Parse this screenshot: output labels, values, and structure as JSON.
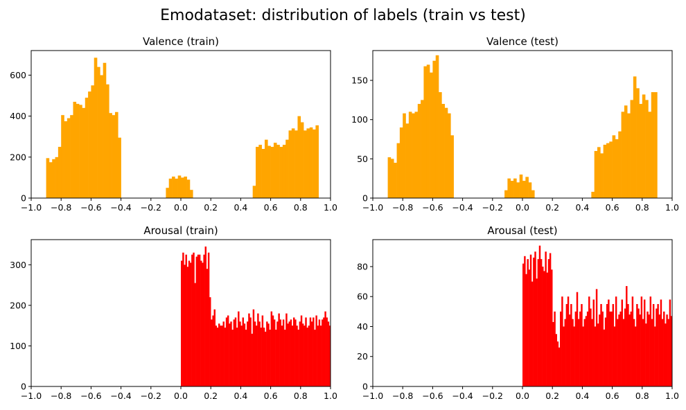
{
  "figure": {
    "title": "Emodataset: distribution of labels (train vs test)"
  },
  "chart_data": [
    {
      "type": "bar",
      "title": "Valence (train)",
      "color": "#ffa500",
      "xlim": [
        -1.0,
        1.0
      ],
      "ylim": [
        0,
        720
      ],
      "xticks": [
        "−1.0",
        "−0.8",
        "−0.6",
        "−0.4",
        "−0.2",
        "0.0",
        "0.2",
        "0.4",
        "0.6",
        "0.8",
        "1.0"
      ],
      "yticks": [
        "0",
        "200",
        "400",
        "600"
      ],
      "x_range": [
        -0.9,
        0.9
      ],
      "bin_width": 0.02,
      "values": [
        195,
        175,
        190,
        200,
        250,
        405,
        375,
        390,
        405,
        470,
        460,
        455,
        440,
        490,
        520,
        550,
        685,
        640,
        600,
        660,
        555,
        415,
        405,
        420,
        295,
        0,
        0,
        0,
        0,
        0,
        0,
        0,
        0,
        0,
        0,
        0,
        0,
        0,
        0,
        0,
        50,
        95,
        105,
        95,
        110,
        100,
        105,
        90,
        40,
        0,
        0,
        0,
        0,
        0,
        0,
        0,
        0,
        0,
        0,
        0,
        0,
        0,
        0,
        0,
        0,
        0,
        0,
        0,
        0,
        60,
        250,
        260,
        240,
        285,
        255,
        250,
        270,
        260,
        250,
        260,
        285,
        330,
        340,
        330,
        400,
        370,
        330,
        340,
        345,
        335,
        355
      ]
    },
    {
      "type": "bar",
      "title": "Valence (test)",
      "color": "#ffa500",
      "xlim": [
        -1.0,
        1.0
      ],
      "ylim": [
        0,
        188
      ],
      "xticks": [
        "−1.0",
        "−0.8",
        "−0.6",
        "−0.4",
        "−0.2",
        "0.0",
        "0.2",
        "0.4",
        "0.6",
        "0.8",
        "1.0"
      ],
      "yticks": [
        "0",
        "50",
        "100",
        "150"
      ],
      "x_range": [
        -0.9,
        0.9
      ],
      "bin_width": 0.02,
      "values": [
        52,
        50,
        45,
        70,
        90,
        108,
        95,
        110,
        108,
        110,
        120,
        125,
        168,
        170,
        160,
        175,
        182,
        135,
        120,
        115,
        108,
        80,
        0,
        0,
        0,
        0,
        0,
        0,
        0,
        0,
        0,
        0,
        0,
        0,
        0,
        0,
        0,
        0,
        0,
        10,
        25,
        22,
        25,
        20,
        30,
        22,
        27,
        20,
        10,
        0,
        0,
        0,
        0,
        0,
        0,
        0,
        0,
        0,
        0,
        0,
        0,
        0,
        0,
        0,
        0,
        0,
        0,
        0,
        8,
        60,
        65,
        57,
        68,
        70,
        72,
        80,
        75,
        85,
        110,
        118,
        108,
        125,
        155,
        140,
        120,
        132,
        125,
        110,
        135,
        135
      ]
    },
    {
      "type": "bar",
      "title": "Arousal (train)",
      "color": "#ff0000",
      "xlim": [
        -1.0,
        1.0
      ],
      "ylim": [
        0,
        362
      ],
      "xticks": [
        "−1.0",
        "−0.8",
        "−0.6",
        "−0.4",
        "−0.2",
        "0.0",
        "0.2",
        "0.4",
        "0.6",
        "0.8",
        "1.0"
      ],
      "yticks": [
        "0",
        "100",
        "200",
        "300"
      ],
      "x_range": [
        0.0,
        1.0
      ],
      "bin_width": 0.01,
      "values": [
        310,
        330,
        300,
        325,
        295,
        310,
        305,
        325,
        330,
        255,
        320,
        325,
        325,
        310,
        305,
        325,
        345,
        290,
        330,
        220,
        165,
        175,
        190,
        150,
        145,
        155,
        150,
        150,
        160,
        145,
        170,
        175,
        155,
        160,
        140,
        165,
        170,
        145,
        185,
        160,
        150,
        170,
        155,
        140,
        160,
        180,
        170,
        130,
        190,
        160,
        150,
        180,
        160,
        145,
        175,
        145,
        135,
        160,
        155,
        140,
        185,
        175,
        165,
        140,
        160,
        180,
        165,
        150,
        165,
        140,
        180,
        155,
        160,
        165,
        150,
        170,
        165,
        150,
        140,
        160,
        175,
        155,
        150,
        170,
        145,
        150,
        170,
        160,
        170,
        140,
        175,
        150,
        165,
        150,
        165,
        170,
        185,
        170,
        160,
        150
      ]
    },
    {
      "type": "bar",
      "title": "Arousal (test)",
      "color": "#ff0000",
      "xlim": [
        -1.0,
        1.0
      ],
      "ylim": [
        0,
        98
      ],
      "xticks": [
        "−1.0",
        "−0.8",
        "−0.6",
        "−0.4",
        "−0.2",
        "0.0",
        "0.2",
        "0.4",
        "0.6",
        "0.8",
        "1.0"
      ],
      "yticks": [
        "0",
        "20",
        "40",
        "60",
        "80"
      ],
      "x_range": [
        0.0,
        1.0
      ],
      "bin_width": 0.01,
      "values": [
        82,
        87,
        75,
        85,
        78,
        88,
        70,
        86,
        90,
        72,
        85,
        94,
        85,
        80,
        77,
        90,
        76,
        85,
        89,
        78,
        43,
        50,
        35,
        30,
        26,
        50,
        60,
        40,
        45,
        55,
        60,
        48,
        55,
        45,
        40,
        50,
        63,
        45,
        50,
        55,
        40,
        45,
        47,
        50,
        60,
        52,
        45,
        58,
        40,
        65,
        42,
        48,
        55,
        50,
        38,
        46,
        55,
        58,
        50,
        50,
        55,
        40,
        60,
        45,
        48,
        50,
        58,
        45,
        52,
        67,
        55,
        48,
        50,
        60,
        45,
        40,
        55,
        52,
        48,
        60,
        45,
        58,
        42,
        50,
        48,
        60,
        45,
        55,
        40,
        52,
        55,
        48,
        58,
        45,
        50,
        42,
        48,
        45,
        58,
        47
      ]
    }
  ]
}
